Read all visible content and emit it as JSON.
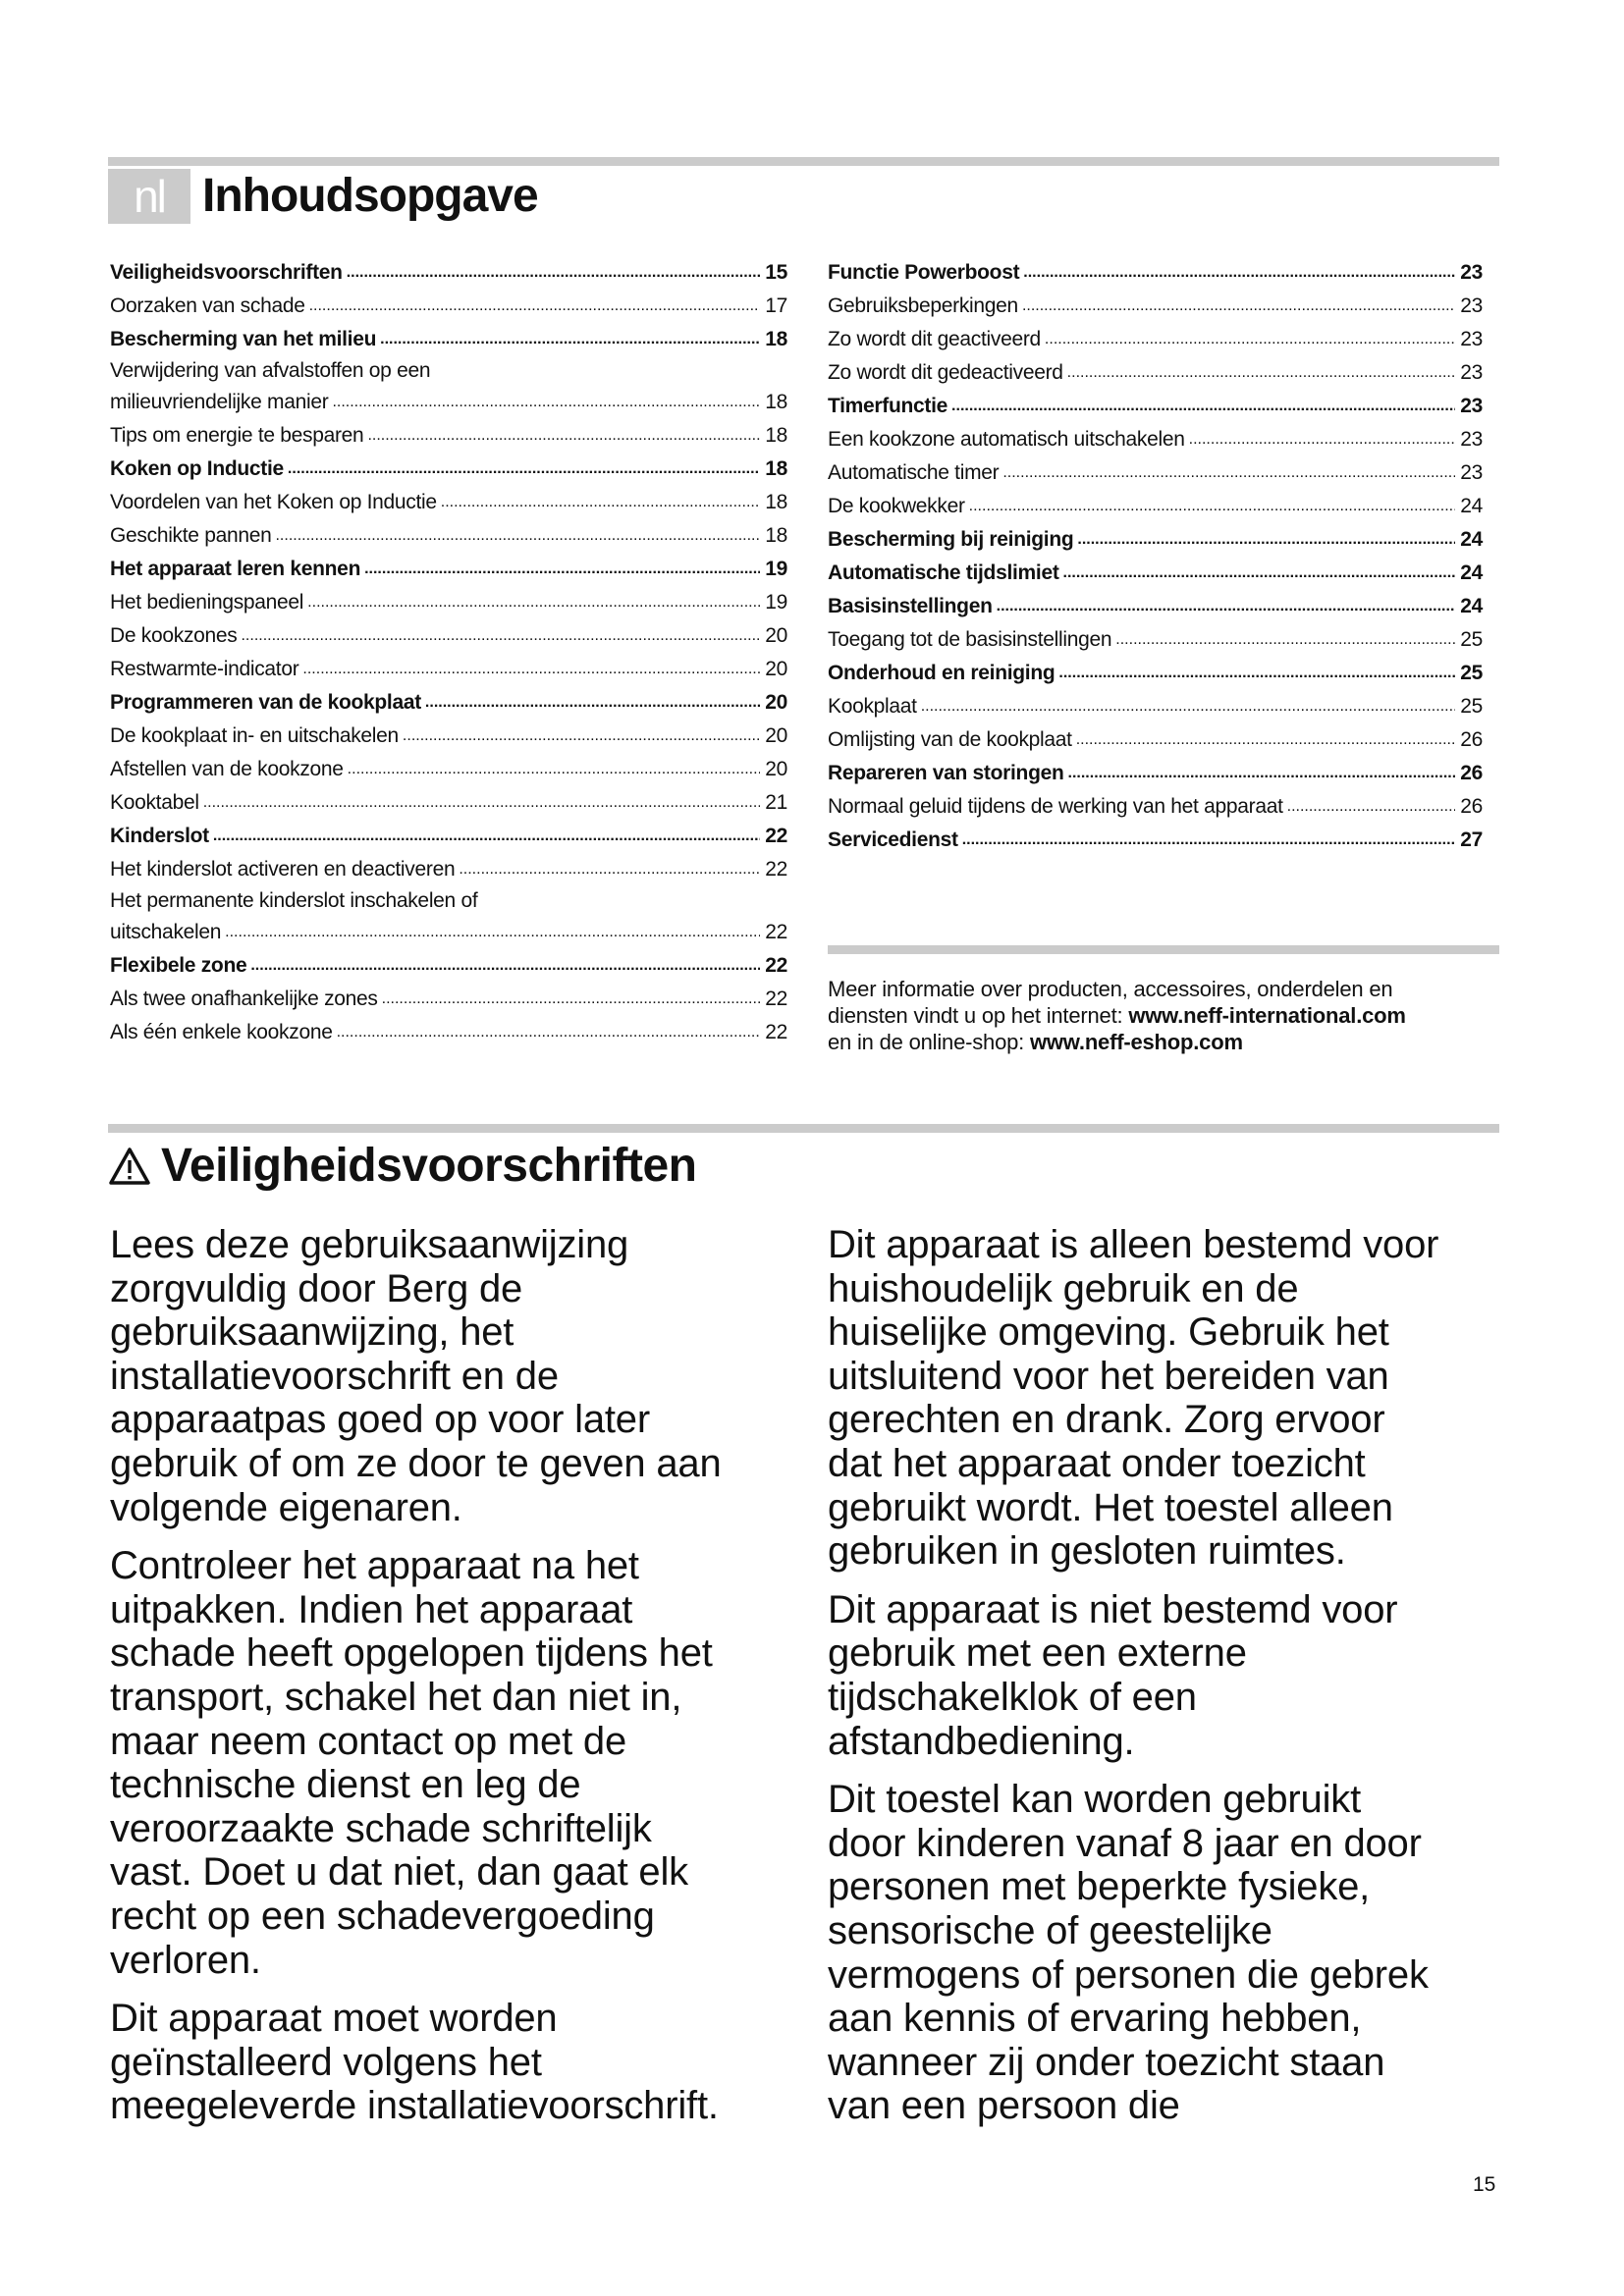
{
  "header": {
    "lang_badge": "nl",
    "title": "Inhoudsopgave"
  },
  "toc_left": [
    {
      "lines": [
        "Veiligheidsvoorschriften"
      ],
      "page": "15",
      "bold": true
    },
    {
      "lines": [
        "Oorzaken van schade"
      ],
      "page": "17",
      "bold": false
    },
    {
      "lines": [
        "Bescherming van het milieu"
      ],
      "page": "18",
      "bold": true
    },
    {
      "lines": [
        "Verwijdering van afvalstoffen op een",
        "milieuvriendelijke manier"
      ],
      "page": "18",
      "bold": false
    },
    {
      "lines": [
        "Tips om energie te besparen"
      ],
      "page": "18",
      "bold": false
    },
    {
      "lines": [
        "Koken op Inductie"
      ],
      "page": "18",
      "bold": true
    },
    {
      "lines": [
        "Voordelen van het Koken op Inductie"
      ],
      "page": "18",
      "bold": false
    },
    {
      "lines": [
        "Geschikte pannen"
      ],
      "page": "18",
      "bold": false
    },
    {
      "lines": [
        "Het apparaat leren kennen"
      ],
      "page": "19",
      "bold": true
    },
    {
      "lines": [
        "Het bedieningspaneel"
      ],
      "page": "19",
      "bold": false
    },
    {
      "lines": [
        "De kookzones"
      ],
      "page": "20",
      "bold": false
    },
    {
      "lines": [
        "Restwarmte-indicator"
      ],
      "page": "20",
      "bold": false
    },
    {
      "lines": [
        "Programmeren van de kookplaat"
      ],
      "page": "20",
      "bold": true
    },
    {
      "lines": [
        "De kookplaat in- en uitschakelen"
      ],
      "page": "20",
      "bold": false
    },
    {
      "lines": [
        "Afstellen van de kookzone"
      ],
      "page": "20",
      "bold": false
    },
    {
      "lines": [
        "Kooktabel"
      ],
      "page": "21",
      "bold": false
    },
    {
      "lines": [
        "Kinderslot"
      ],
      "page": "22",
      "bold": true
    },
    {
      "lines": [
        "Het kinderslot activeren en deactiveren"
      ],
      "page": "22",
      "bold": false
    },
    {
      "lines": [
        "Het permanente kinderslot inschakelen of",
        "uitschakelen"
      ],
      "page": "22",
      "bold": false
    },
    {
      "lines": [
        "Flexibele zone"
      ],
      "page": "22",
      "bold": true
    },
    {
      "lines": [
        "Als twee onafhankelijke zones"
      ],
      "page": "22",
      "bold": false
    },
    {
      "lines": [
        "Als één enkele kookzone"
      ],
      "page": "22",
      "bold": false
    }
  ],
  "toc_right": [
    {
      "lines": [
        "Functie Powerboost"
      ],
      "page": "23",
      "bold": true
    },
    {
      "lines": [
        "Gebruiksbeperkingen"
      ],
      "page": "23",
      "bold": false
    },
    {
      "lines": [
        "Zo wordt dit geactiveerd"
      ],
      "page": "23",
      "bold": false
    },
    {
      "lines": [
        "Zo wordt dit gedeactiveerd"
      ],
      "page": "23",
      "bold": false
    },
    {
      "lines": [
        "Timerfunctie"
      ],
      "page": "23",
      "bold": true
    },
    {
      "lines": [
        "Een kookzone automatisch uitschakelen"
      ],
      "page": "23",
      "bold": false
    },
    {
      "lines": [
        "Automatische timer"
      ],
      "page": "23",
      "bold": false
    },
    {
      "lines": [
        "De kookwekker"
      ],
      "page": "24",
      "bold": false
    },
    {
      "lines": [
        "Bescherming bij reiniging"
      ],
      "page": "24",
      "bold": true
    },
    {
      "lines": [
        "Automatische tijdslimiet"
      ],
      "page": "24",
      "bold": true
    },
    {
      "lines": [
        "Basisinstellingen"
      ],
      "page": "24",
      "bold": true
    },
    {
      "lines": [
        "Toegang tot de basisinstellingen"
      ],
      "page": "25",
      "bold": false
    },
    {
      "lines": [
        "Onderhoud en reiniging"
      ],
      "page": "25",
      "bold": true
    },
    {
      "lines": [
        "Kookplaat"
      ],
      "page": "25",
      "bold": false
    },
    {
      "lines": [
        "Omlijsting van de kookplaat"
      ],
      "page": "26",
      "bold": false
    },
    {
      "lines": [
        "Repareren van storingen"
      ],
      "page": "26",
      "bold": true
    },
    {
      "lines": [
        "Normaal geluid tijdens de werking van het apparaat"
      ],
      "page": "26",
      "bold": false
    },
    {
      "lines": [
        "Servicedienst"
      ],
      "page": "27",
      "bold": true
    }
  ],
  "info": {
    "line1": "Meer informatie over producten, accessoires, onderdelen en",
    "line2": "diensten vindt u op het internet: ",
    "url1": "www.neff-international.com",
    "line3": "en in de online-shop: ",
    "url2": "www.neff-eshop.com"
  },
  "section": {
    "icon": "warning-triangle-icon",
    "title": "Veiligheidsvoorschriften"
  },
  "body_left": [
    [
      "Lees deze gebruiksaanwijzing",
      "zorgvuldig door Berg de",
      "gebruiksaanwijzing, het",
      "installatievoorschrift en de",
      "apparaatpas goed op voor later",
      "gebruik of om ze door te geven aan",
      "volgende eigenaren."
    ],
    [
      "Controleer het apparaat na het",
      "uitpakken. Indien het apparaat",
      "schade heeft opgelopen tijdens het",
      "transport, schakel het dan niet in,",
      "maar neem contact op met de",
      "technische dienst en leg de",
      "veroorzaakte schade schriftelijk",
      "vast. Doet u dat niet, dan gaat elk",
      "recht op een schadevergoeding",
      "verloren."
    ],
    [
      "Dit apparaat moet worden",
      "geïnstalleerd volgens het",
      "meegeleverde installatievoorschrift."
    ]
  ],
  "body_right": [
    [
      "Dit apparaat is alleen bestemd voor",
      "huishoudelijk gebruik en de",
      "huiselijke omgeving. Gebruik het",
      "uitsluitend voor het bereiden van",
      "gerechten en drank. Zorg ervoor",
      "dat het apparaat onder toezicht",
      "gebruikt wordt. Het toestel alleen",
      "gebruiken in gesloten ruimtes."
    ],
    [
      "Dit apparaat is niet bestemd voor",
      "gebruik met een externe",
      "tijdschakelklok of een",
      "afstandbediening."
    ],
    [
      "Dit toestel kan worden gebruikt",
      "door kinderen vanaf 8 jaar en door",
      "personen met beperkte fysieke,",
      "sensorische of geestelijke",
      "vermogens of personen die gebrek",
      "aan kennis of ervaring hebben,",
      "wanneer zij onder toezicht staan",
      "van een persoon die"
    ]
  ],
  "footer": {
    "page_number": "15"
  },
  "colors": {
    "rule": "#cbcbcb",
    "text": "#111111"
  }
}
